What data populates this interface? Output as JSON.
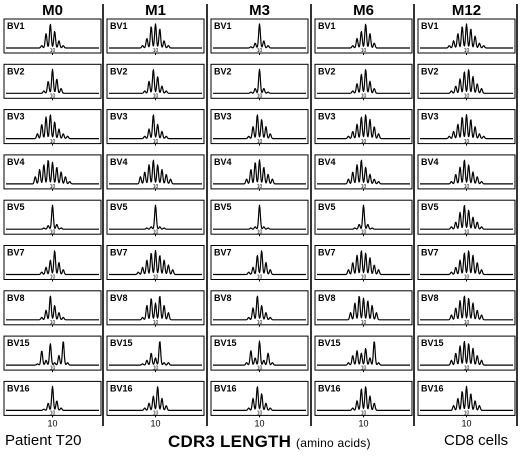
{
  "chart_data": {
    "type": "spectratype-grid",
    "timepoints": [
      "M0",
      "M1",
      "M3",
      "M6",
      "M12"
    ],
    "segments": [
      "BV1",
      "BV2",
      "BV3",
      "BV4",
      "BV5",
      "BV7",
      "BV8",
      "BV15",
      "BV16"
    ],
    "x_tick_label": "10",
    "profiles": {
      "BV1": [
        [
          0.1,
          0.6,
          1.0,
          0.7,
          0.3,
          0.1
        ],
        [
          0.1,
          0.4,
          0.9,
          1.0,
          0.8,
          0.3,
          0.1
        ],
        [
          0.05,
          0.2,
          1.0,
          0.3,
          0.1
        ],
        [
          0.1,
          0.4,
          0.7,
          1.0,
          0.6,
          0.2
        ],
        [
          0.1,
          0.3,
          0.6,
          0.9,
          1.0,
          0.8,
          0.5,
          0.2,
          0.1
        ]
      ],
      "BV2": [
        [
          0.1,
          0.5,
          1.0,
          0.6,
          0.2
        ],
        [
          0.1,
          0.5,
          1.0,
          0.7,
          0.3,
          0.1
        ],
        [
          0.05,
          0.2,
          1.0,
          0.2,
          0.05
        ],
        [
          0.1,
          0.4,
          0.8,
          1.0,
          0.5,
          0.2
        ],
        [
          0.1,
          0.3,
          0.6,
          0.9,
          1.0,
          0.7,
          0.4,
          0.2
        ]
      ],
      "BV3": [
        [
          0.2,
          0.6,
          0.9,
          1.0,
          0.7,
          0.4,
          0.2,
          0.1
        ],
        [
          0.1,
          0.4,
          1.0,
          0.6,
          0.3,
          0.1
        ],
        [
          0.1,
          0.5,
          1.0,
          0.8,
          0.5,
          0.2
        ],
        [
          0.1,
          0.3,
          0.6,
          0.9,
          1.0,
          0.8,
          0.5,
          0.2
        ],
        [
          0.1,
          0.3,
          0.6,
          0.9,
          1.0,
          0.8,
          0.5,
          0.2,
          0.1
        ]
      ],
      "BV4": [
        [
          0.3,
          0.6,
          0.8,
          1.0,
          0.9,
          0.7,
          0.5,
          0.3,
          0.1
        ],
        [
          0.3,
          0.5,
          0.8,
          1.0,
          0.8,
          0.6,
          0.4,
          0.2
        ],
        [
          0.2,
          0.6,
          0.9,
          1.0,
          0.7,
          0.4,
          0.2
        ],
        [
          0.2,
          0.5,
          0.8,
          1.0,
          0.7,
          0.4,
          0.2,
          0.1
        ],
        [
          0.1,
          0.4,
          0.7,
          1.0,
          0.8,
          0.5,
          0.3,
          0.1
        ]
      ],
      "BV5": [
        [
          0.05,
          0.15,
          1.0,
          0.2,
          0.05
        ],
        [
          0.05,
          0.1,
          1.0,
          0.1,
          0.05
        ],
        [
          0.05,
          0.1,
          1.0,
          0.1,
          0.05
        ],
        [
          0.05,
          0.2,
          1.0,
          0.2,
          0.05
        ],
        [
          0.1,
          0.3,
          0.7,
          1.0,
          0.8,
          0.5,
          0.3,
          0.1
        ]
      ],
      "BV7": [
        [
          0.1,
          0.3,
          0.6,
          1.0,
          0.5,
          0.2
        ],
        [
          0.1,
          0.3,
          0.6,
          0.9,
          1.0,
          0.8,
          0.6,
          0.4,
          0.2
        ],
        [
          0.1,
          0.3,
          0.8,
          1.0,
          0.5,
          0.2
        ],
        [
          0.2,
          0.5,
          0.8,
          1.0,
          0.9,
          0.7,
          0.4,
          0.2
        ],
        [
          0.1,
          0.3,
          0.6,
          0.9,
          1.0,
          0.8,
          0.5,
          0.2
        ]
      ],
      "BV8": [
        [
          0.1,
          0.4,
          1.0,
          0.6,
          0.3,
          0.1
        ],
        [
          0.1,
          0.6,
          0.9,
          0.7,
          1.0,
          0.6,
          0.3
        ],
        [
          0.1,
          0.5,
          1.0,
          0.6,
          0.3,
          0.1
        ],
        [
          0.3,
          0.7,
          1.0,
          0.9,
          0.8,
          0.6,
          0.3
        ],
        [
          0.2,
          0.5,
          0.8,
          1.0,
          0.9,
          0.7,
          0.4,
          0.2
        ]
      ],
      "BV15": [
        [
          0.05,
          0.6,
          0.2,
          0.9,
          0.1,
          0.4,
          1.0,
          0.1
        ],
        [
          0.05,
          0.2,
          0.5,
          0.3,
          1.0,
          0.1,
          0.1
        ],
        [
          0.1,
          0.6,
          0.3,
          1.0,
          0.2,
          0.5,
          0.1
        ],
        [
          0.1,
          0.4,
          0.6,
          0.5,
          0.7,
          0.3,
          1.0,
          0.1
        ],
        [
          0.2,
          0.5,
          0.8,
          1.0,
          0.9,
          0.7,
          0.4,
          0.2
        ]
      ],
      "BV16": [
        [
          0.05,
          0.3,
          1.0,
          0.4,
          0.1
        ],
        [
          0.1,
          0.3,
          0.6,
          1.0,
          0.5,
          0.2
        ],
        [
          0.1,
          0.5,
          1.0,
          0.7,
          0.3,
          0.1
        ],
        [
          0.1,
          0.4,
          0.9,
          1.0,
          0.6,
          0.3
        ],
        [
          0.2,
          0.5,
          0.8,
          1.0,
          0.7,
          0.4,
          0.2
        ]
      ]
    }
  },
  "footer": {
    "left": "Patient T20",
    "center_main": "CDR3 LENGTH",
    "center_unit": "(amino acids)",
    "right": "CD8  cells"
  }
}
